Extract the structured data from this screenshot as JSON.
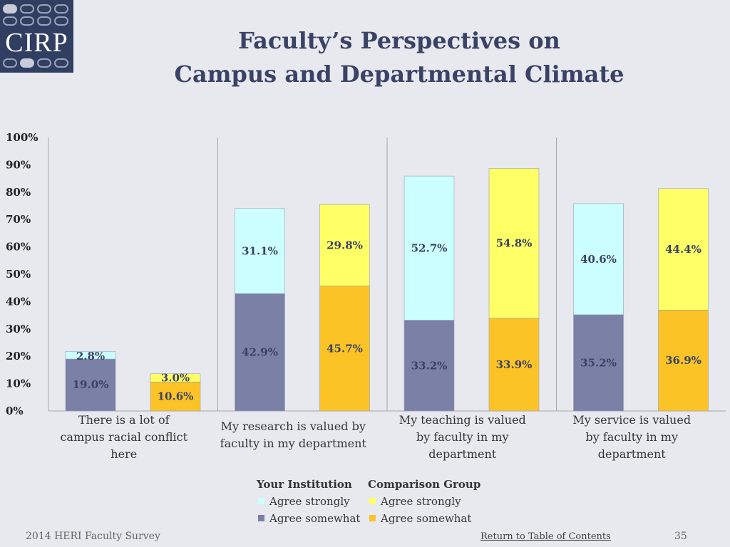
{
  "logo": {
    "text": "CIRP"
  },
  "title": {
    "line1": "Faculty’s Perspectives on",
    "line2": "Campus and Departmental Climate"
  },
  "colors": {
    "inst_strongly": "#ccffff",
    "inst_somewhat": "#7b80a7",
    "comp_strongly": "#ffff66",
    "comp_somewhat": "#fbc325",
    "grid_divider": "#a6a6a6",
    "label_dark": "#3a4266"
  },
  "chart_data": {
    "type": "bar",
    "stacked": true,
    "ylim": [
      0,
      100
    ],
    "y_ticks": [
      "0%",
      "10%",
      "20%",
      "30%",
      "40%",
      "50%",
      "60%",
      "70%",
      "80%",
      "90%",
      "100%"
    ],
    "categories": [
      {
        "label_lines": [
          "There is a lot of",
          "campus racial conflict",
          "here"
        ]
      },
      {
        "label_lines": [
          "My research is valued by",
          "faculty in my department"
        ]
      },
      {
        "label_lines": [
          "My teaching is valued",
          "by faculty in my",
          "department"
        ]
      },
      {
        "label_lines": [
          "My service is valued",
          "by faculty in my",
          "department"
        ]
      }
    ],
    "series": [
      {
        "group": "Your Institution",
        "name": "Agree somewhat",
        "color": "#7b80a7",
        "values": [
          19.0,
          42.9,
          33.2,
          35.2
        ],
        "labels": [
          "19.0%",
          "42.9%",
          "33.2%",
          "35.2%"
        ]
      },
      {
        "group": "Your Institution",
        "name": "Agree strongly",
        "color": "#ccffff",
        "values": [
          2.8,
          31.1,
          52.7,
          40.6
        ],
        "labels": [
          "2.8%",
          "31.1%",
          "52.7%",
          "40.6%"
        ]
      },
      {
        "group": "Comparison Group",
        "name": "Agree somewhat",
        "color": "#fbc325",
        "values": [
          10.6,
          45.7,
          33.9,
          36.9
        ],
        "labels": [
          "10.6%",
          "45.7%",
          "33.9%",
          "36.9%"
        ]
      },
      {
        "group": "Comparison Group",
        "name": "Agree strongly",
        "color": "#ffff66",
        "values": [
          3.0,
          29.8,
          54.8,
          44.4
        ],
        "labels": [
          "3.0%",
          "29.8%",
          "54.8%",
          "44.4%"
        ]
      }
    ]
  },
  "legend": {
    "inst_title": "Your Institution",
    "inst_strongly": "Agree strongly",
    "inst_somewhat": "Agree somewhat",
    "comp_title": "Comparison Group",
    "comp_strongly": "Agree strongly",
    "comp_somewhat": "Agree somewhat"
  },
  "footer": {
    "survey": "2014 HERI Faculty Survey",
    "toc_link": "Return to Table of Contents",
    "page": "35"
  }
}
